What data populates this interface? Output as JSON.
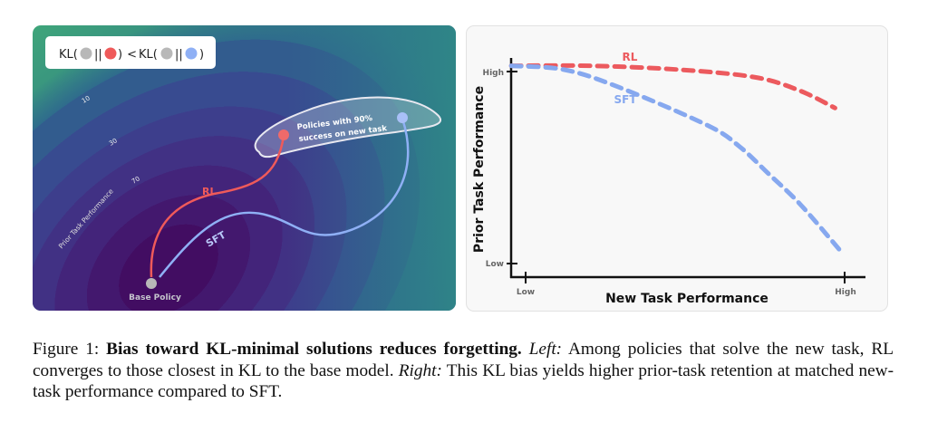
{
  "left_panel": {
    "legend": {
      "kl1": "KL(",
      "sep": "||",
      "close": ")",
      "lt": " < ",
      "kl2": "KL("
    },
    "contour_labels": [
      "10",
      "30",
      "70"
    ],
    "axis_label": "Prior Task Performance",
    "rl_label": "RL",
    "sft_label": "SFT",
    "region_label_line1": "Policies with 90%",
    "region_label_line2": "success on new task",
    "base_label": "Base Policy",
    "colors": {
      "rl": "#ef5a5a",
      "sft": "#8fb0f5",
      "base": "#b8b8b8"
    }
  },
  "chart_data": {
    "type": "line",
    "xlabel": "New Task Performance",
    "ylabel": "Prior Task Performance",
    "xticks": [
      "Low",
      "High"
    ],
    "yticks": [
      "Low",
      "High"
    ],
    "xlim": [
      0,
      1
    ],
    "ylim": [
      0,
      1
    ],
    "grid": false,
    "series": [
      {
        "name": "RL",
        "color": "#ec5a5e",
        "x": [
          -0.045,
          0.2,
          0.48,
          0.72,
          0.86,
          0.97
        ],
        "y": [
          1.03,
          1.03,
          1.01,
          0.97,
          0.9,
          0.81
        ]
      },
      {
        "name": "SFT",
        "color": "#86a8ef",
        "x": [
          -0.045,
          0.12,
          0.29,
          0.57,
          0.67,
          0.76,
          0.86,
          0.985
        ],
        "y": [
          1.03,
          1.01,
          0.92,
          0.72,
          0.61,
          0.47,
          0.31,
          0.07
        ]
      }
    ]
  },
  "caption": {
    "prefix": "Figure 1: ",
    "bold": "Bias toward KL-minimal solutions reduces forgetting.",
    "left_label": "Left:",
    "left_text": " Among policies that solve the new task, RL converges to those closest in KL to the base model. ",
    "right_label": "Right:",
    "right_text": " This KL bias yields higher prior-task retention at matched new-task performance compared to SFT."
  }
}
